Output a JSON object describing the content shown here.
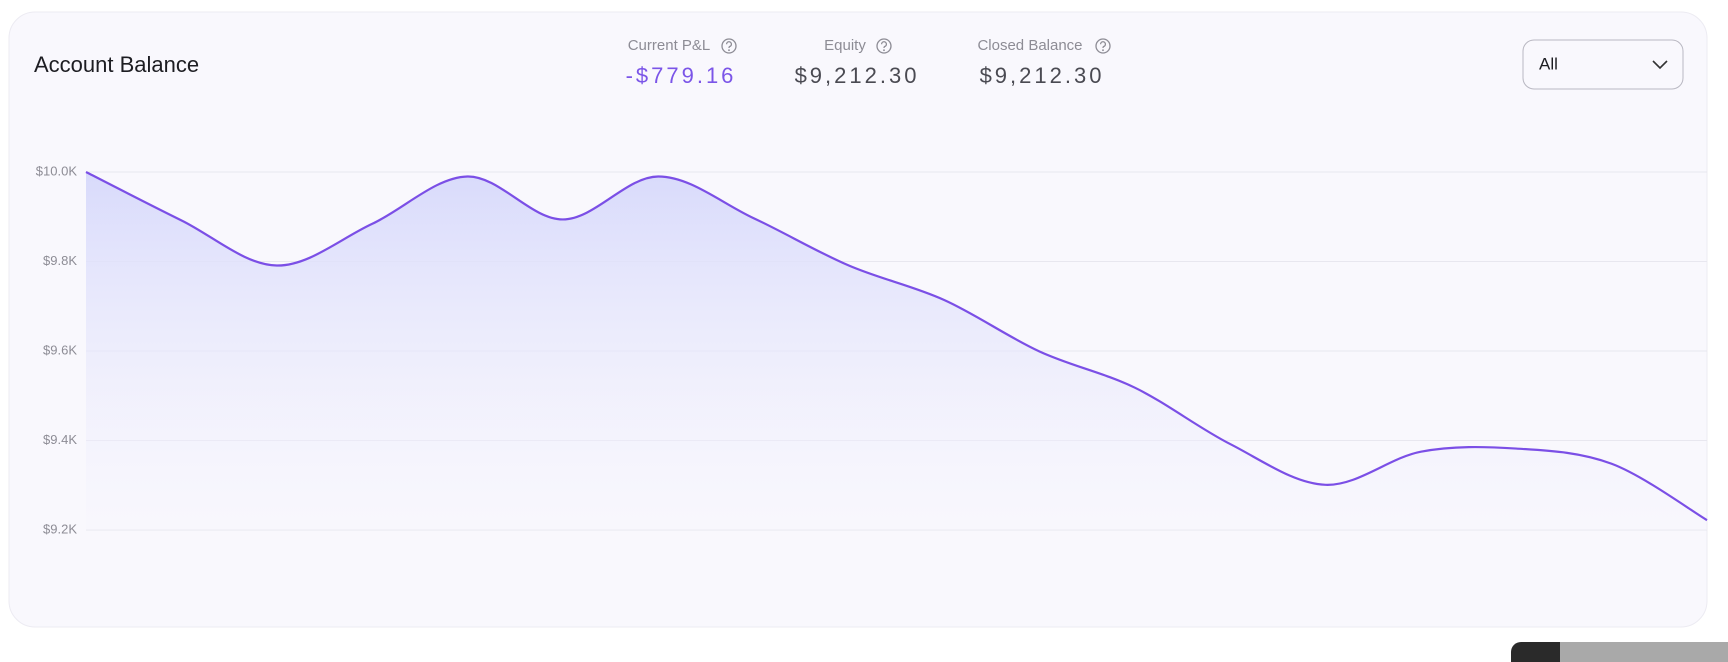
{
  "header": {
    "title": "Account Balance"
  },
  "stats": [
    {
      "label": "Current P&L",
      "value": "-$779.16"
    },
    {
      "label": "Equity",
      "value": "$9,212.30"
    },
    {
      "label": "Closed Balance",
      "value": "$9,212.30"
    }
  ],
  "filter": {
    "selected": "All"
  },
  "chart_data": {
    "type": "area",
    "categories": [
      null,
      null,
      null,
      null,
      null,
      null,
      null,
      null,
      null,
      null,
      null,
      null,
      null,
      null,
      null,
      null,
      null,
      null
    ],
    "series": [
      {
        "color": "#7b4fe6",
        "values": [
          10000,
          9892,
          9791,
          9884,
          9990,
          9894,
          9990,
          9897,
          9791,
          9714,
          9599,
          9518,
          9392,
          9301,
          9375,
          9382,
          9348,
          9222
        ]
      }
    ],
    "ylim": [
      9200,
      10000
    ],
    "yticks": [
      {
        "value": 10000,
        "label": "$10.0K"
      },
      {
        "value": 9800,
        "label": "$9.8K"
      },
      {
        "value": 9600,
        "label": "$9.6K"
      },
      {
        "value": 9400,
        "label": "$9.4K"
      },
      {
        "value": 9200,
        "label": "$9.2K"
      }
    ],
    "grid": true
  }
}
